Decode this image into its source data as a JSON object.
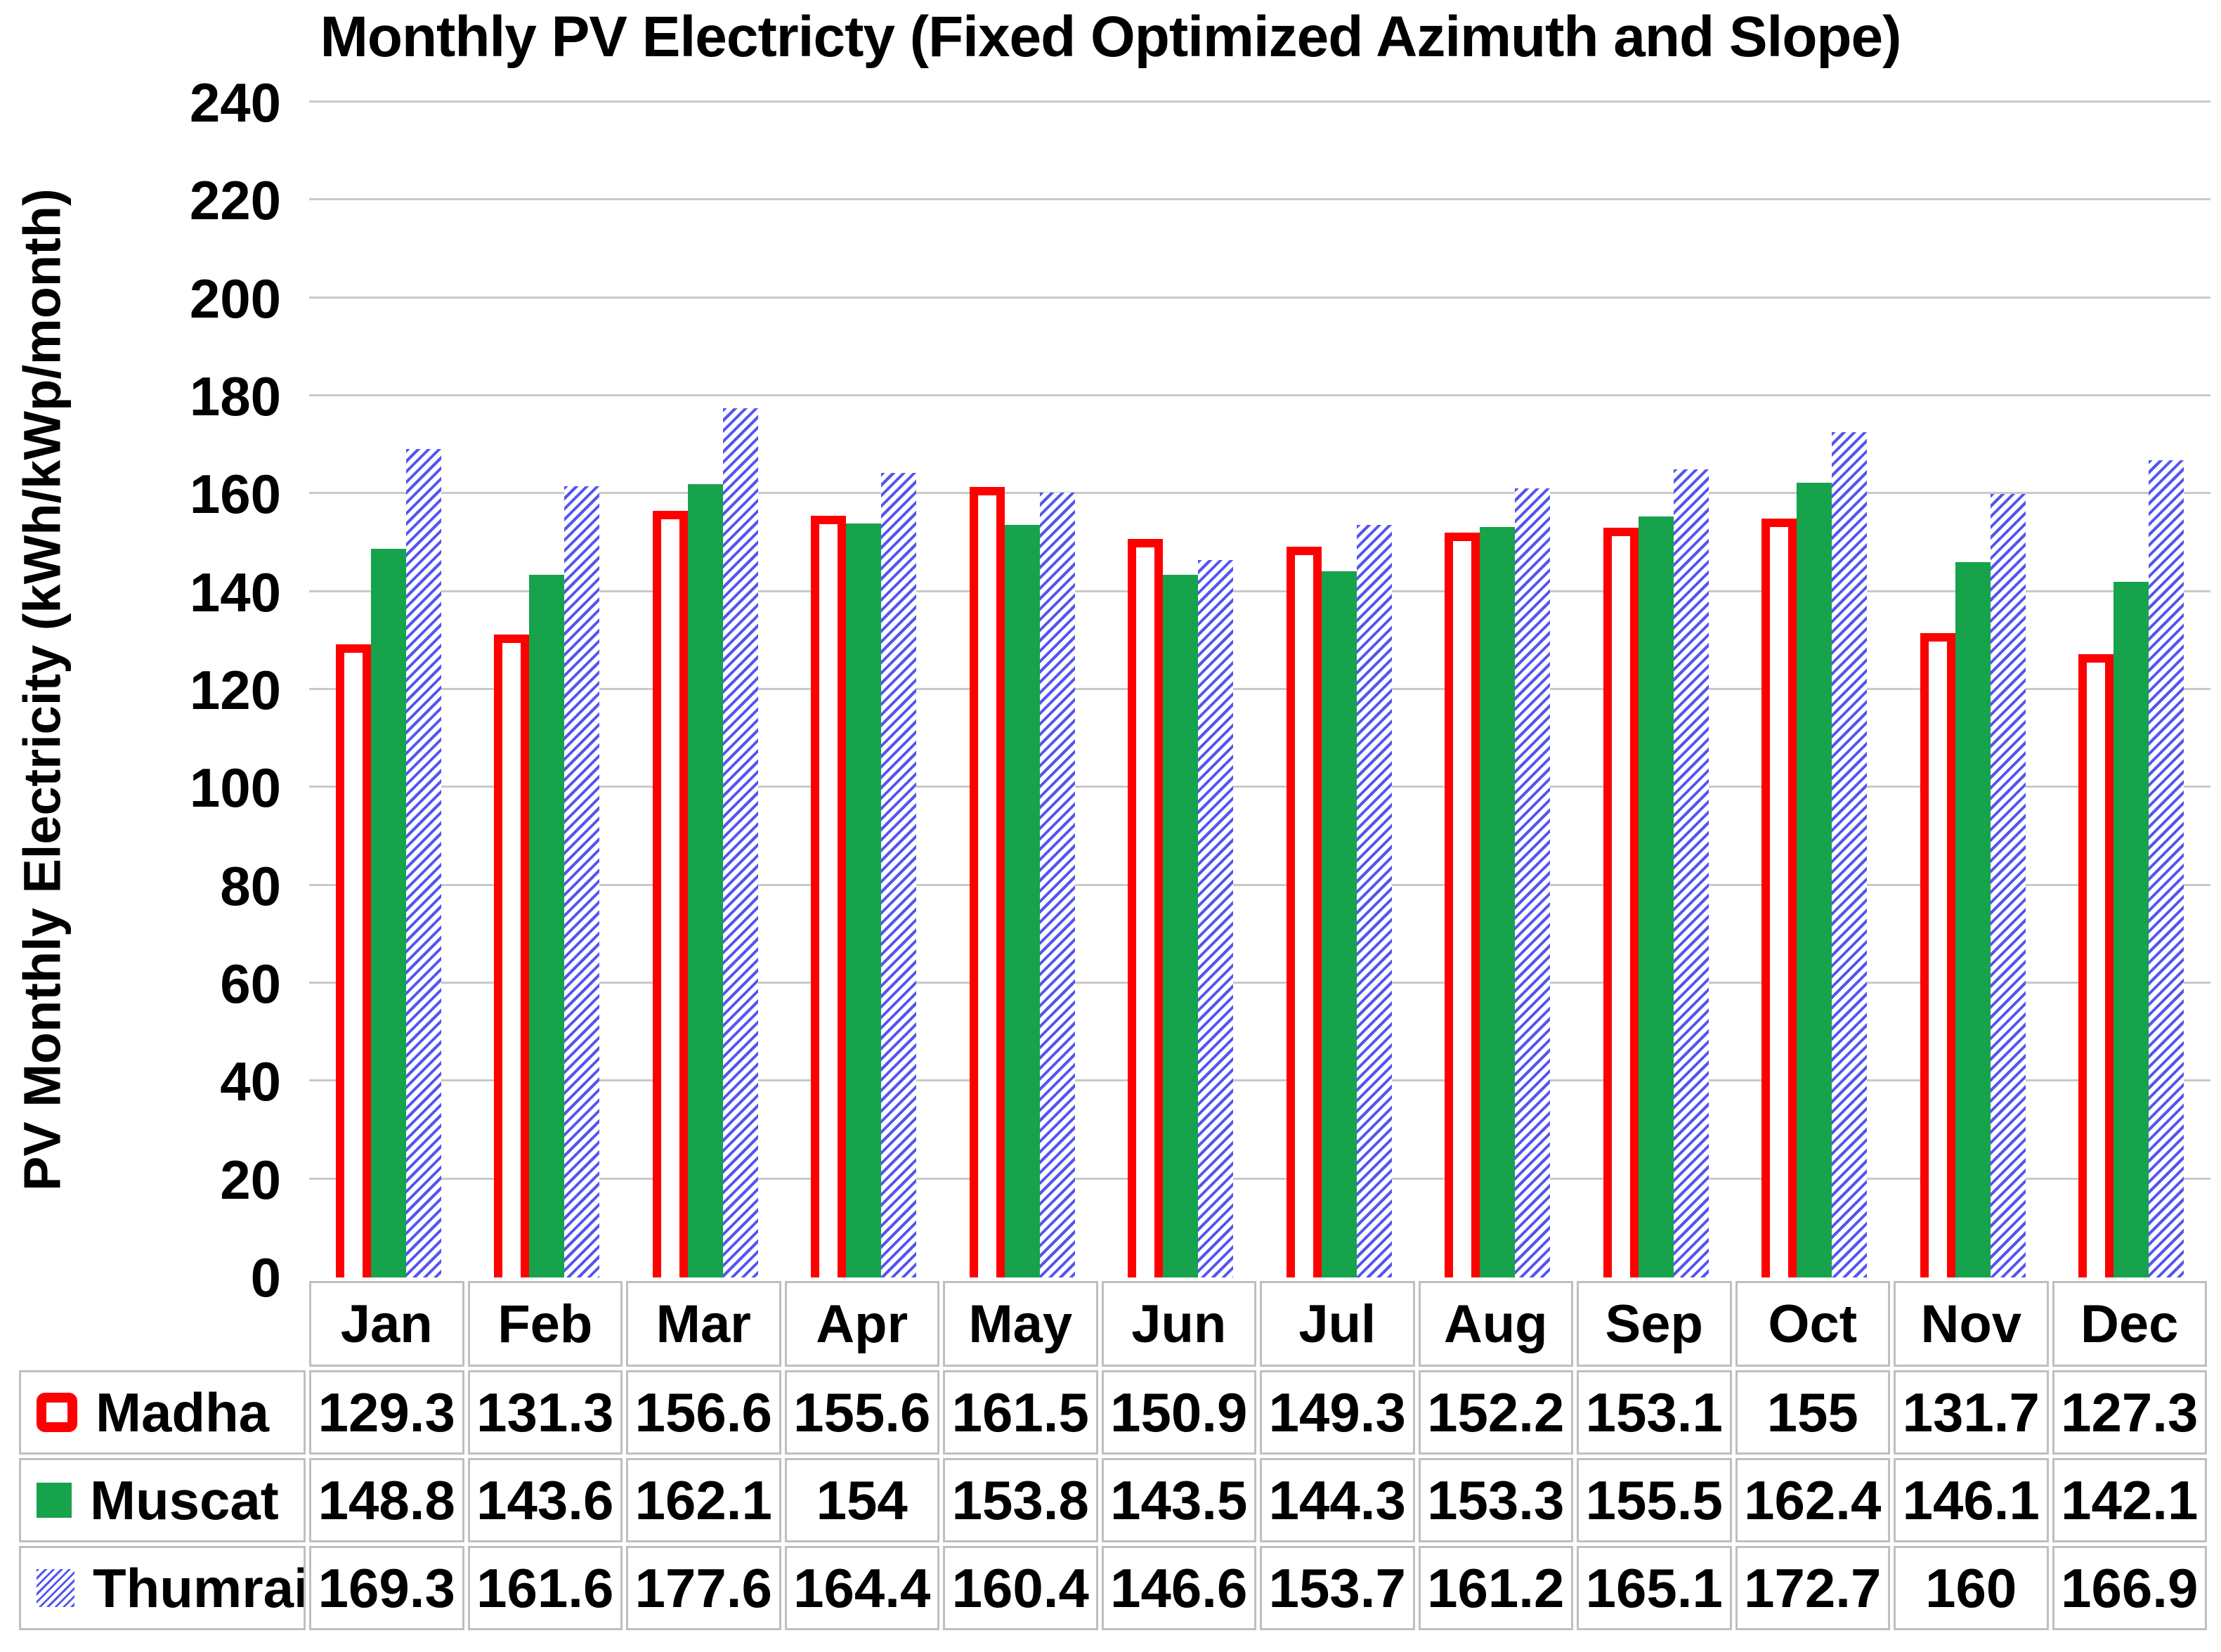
{
  "title": "Monthly PV Electricty (Fixed Optimized Azimuth and Slope)",
  "y_axis": {
    "label": "PV Monthly Electricity (kWh/kWp/month)",
    "min": 0,
    "max": 240,
    "step": 20
  },
  "chart_data": {
    "type": "bar",
    "title": "Monthly PV Electricty (Fixed Optimized Azimuth and Slope)",
    "xlabel": "",
    "ylabel": "PV Monthly Electricity (kWh/kWp/month)",
    "ylim": [
      0,
      240
    ],
    "ytick_step": 20,
    "grid": "horizontal",
    "legend_position": "table-rows-left",
    "categories": [
      "Jan",
      "Feb",
      "Mar",
      "Apr",
      "May",
      "Jun",
      "Jul",
      "Aug",
      "Sep",
      "Oct",
      "Nov",
      "Dec"
    ],
    "series": [
      {
        "name": "Madha",
        "style": "red-outline",
        "values": [
          129.3,
          131.3,
          156.6,
          155.6,
          161.5,
          150.9,
          149.3,
          152.2,
          153.1,
          155,
          131.7,
          127.3
        ]
      },
      {
        "name": "Muscat",
        "style": "green-solid",
        "values": [
          148.8,
          143.6,
          162.1,
          154,
          153.8,
          143.5,
          144.3,
          153.3,
          155.5,
          162.4,
          146.1,
          142.1
        ]
      },
      {
        "name": "Thumrait",
        "style": "blue-hatch",
        "values": [
          169.3,
          161.6,
          177.6,
          164.4,
          160.4,
          146.6,
          153.7,
          161.2,
          165.1,
          172.7,
          160,
          166.9
        ]
      }
    ]
  },
  "colors": {
    "red": "#FE0000",
    "green": "#17A24C",
    "blue": "#5456EE",
    "gridline": "#C9C9C9",
    "table_border": "#BFBFBF",
    "text": "#000000"
  }
}
